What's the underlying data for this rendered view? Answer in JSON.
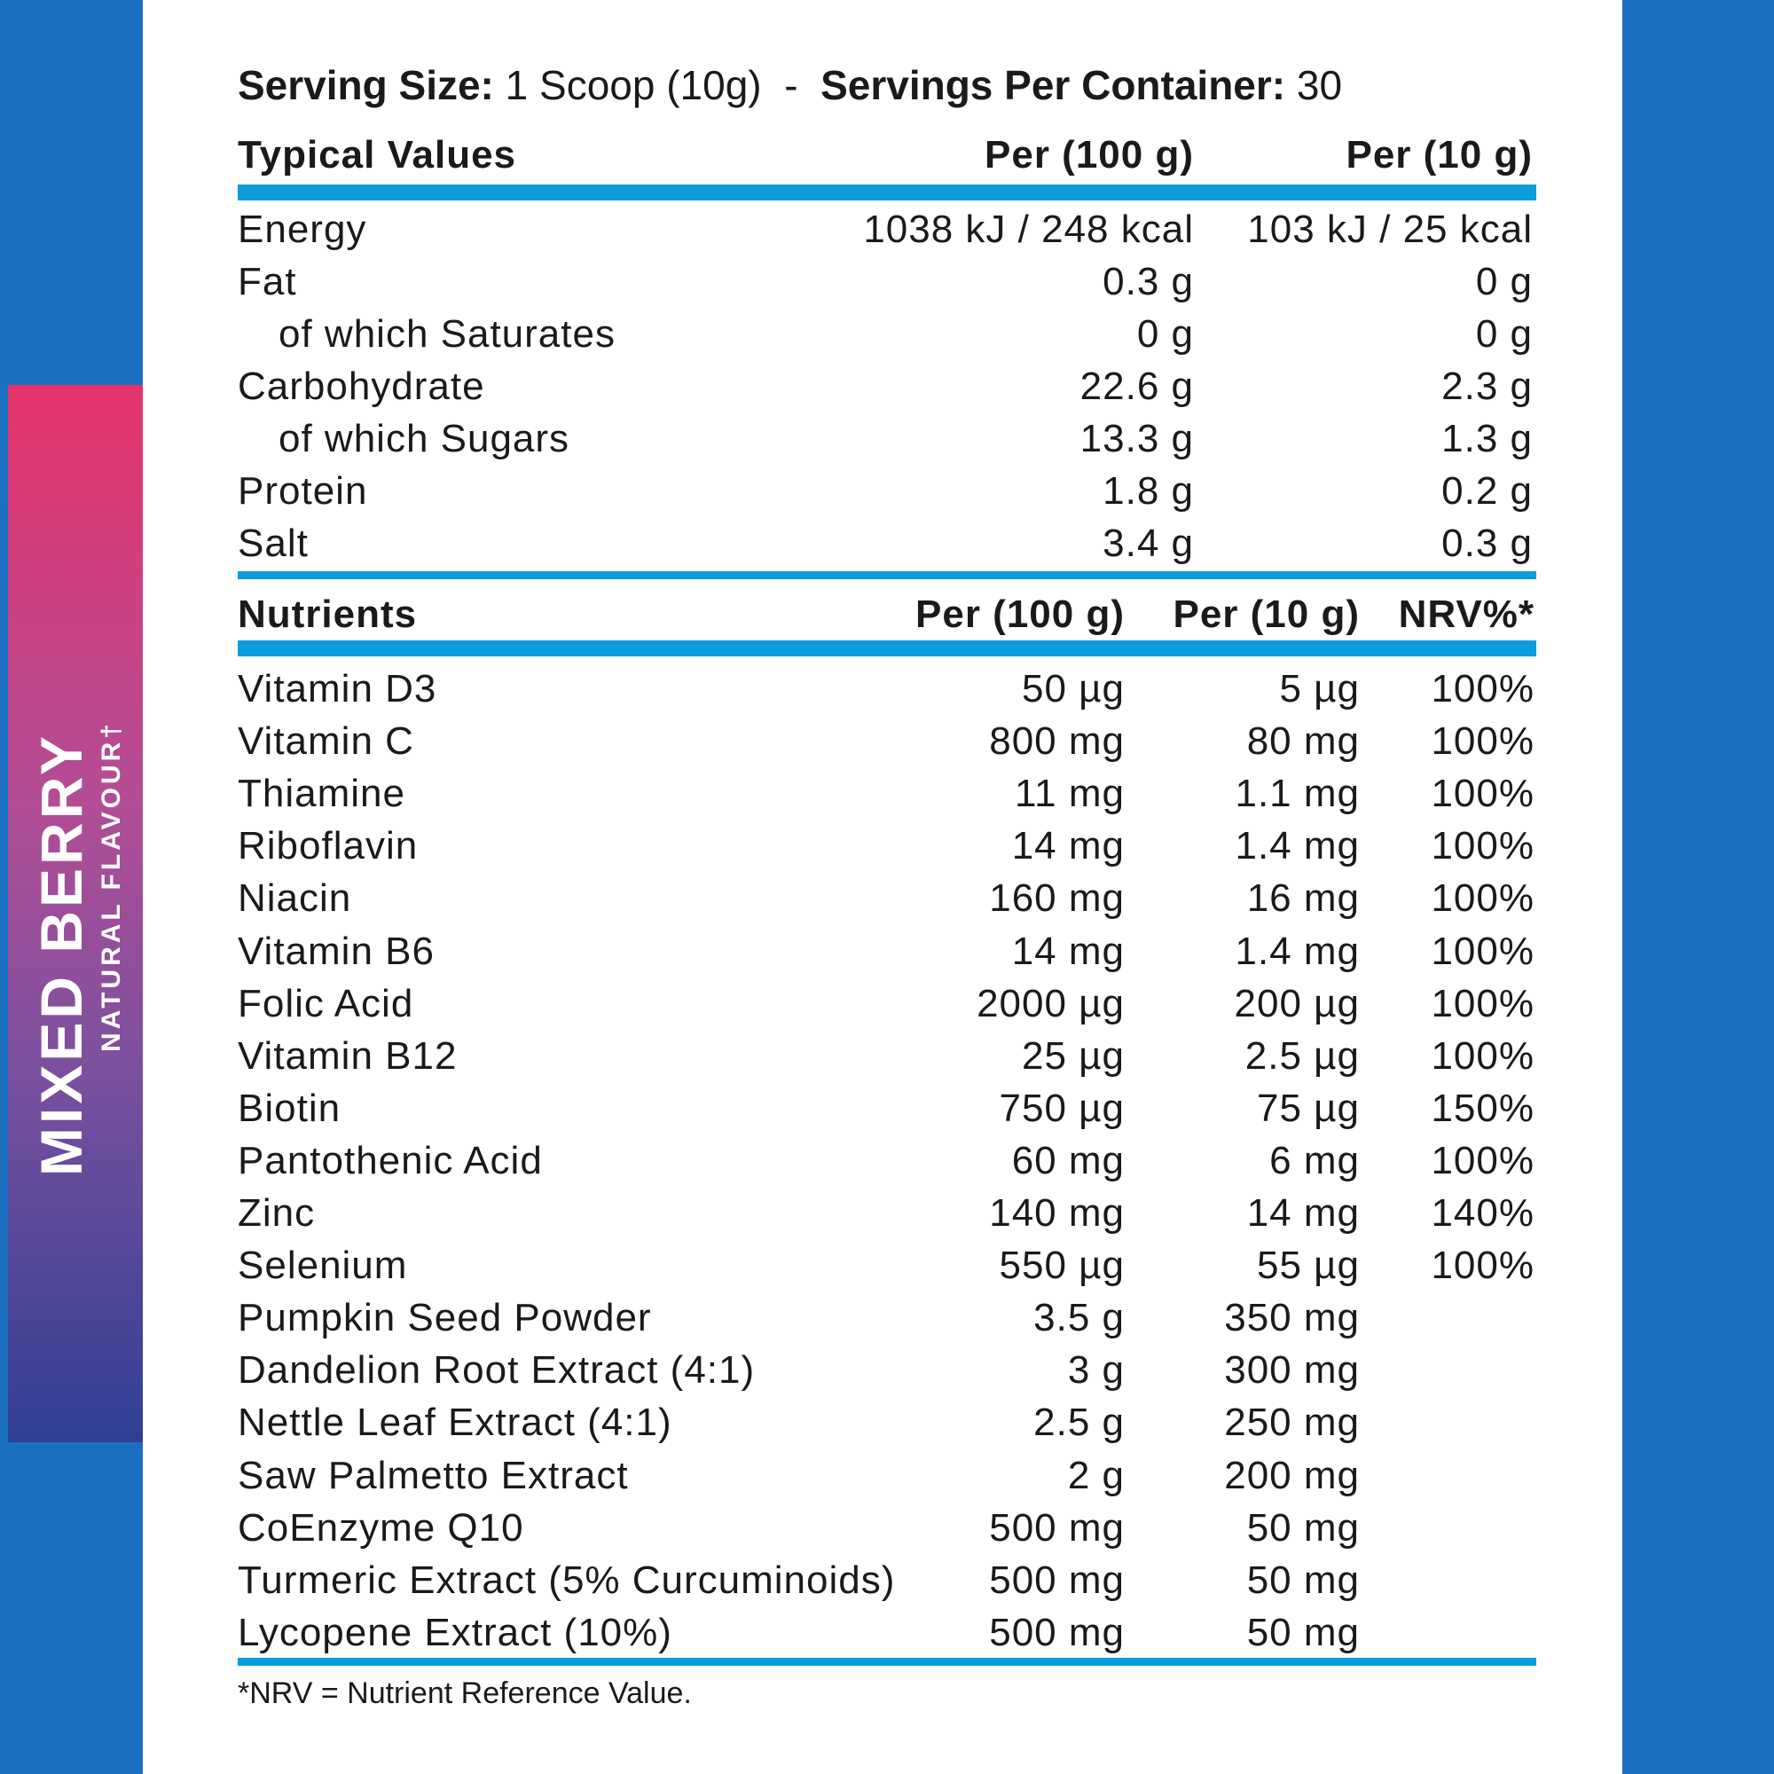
{
  "side_label": {
    "flavour": "MIXED BERRY",
    "subtitle": "NATURAL FLAVOUR†"
  },
  "serving": {
    "size_label": "Serving Size:",
    "size_value": "1 Scoop (10g)",
    "separator": "-",
    "per_container_label": "Servings Per Container:",
    "per_container_value": "30"
  },
  "typical": {
    "headers": [
      "Typical Values",
      "Per (100 g)",
      "Per (10 g)"
    ],
    "rows": [
      {
        "name": "Energy",
        "per100": "1038 kJ / 248 kcal",
        "per10": "103 kJ / 25 kcal",
        "sub": false
      },
      {
        "name": "Fat",
        "per100": "0.3 g",
        "per10": "0 g",
        "sub": false
      },
      {
        "name": "of which Saturates",
        "per100": "0 g",
        "per10": "0 g",
        "sub": true
      },
      {
        "name": "Carbohydrate",
        "per100": "22.6 g",
        "per10": "2.3 g",
        "sub": false
      },
      {
        "name": "of which Sugars",
        "per100": "13.3 g",
        "per10": "1.3 g",
        "sub": true
      },
      {
        "name": "Protein",
        "per100": "1.8 g",
        "per10": "0.2 g",
        "sub": false
      },
      {
        "name": "Salt",
        "per100": "3.4 g",
        "per10": "0.3 g",
        "sub": false
      }
    ]
  },
  "nutrients": {
    "headers": [
      "Nutrients",
      "Per (100 g)",
      "Per (10 g)",
      "NRV%*"
    ],
    "rows": [
      {
        "name": "Vitamin D3",
        "per100": "50 µg",
        "per10": "5 µg",
        "nrv": "100%"
      },
      {
        "name": "Vitamin C",
        "per100": "800 mg",
        "per10": "80 mg",
        "nrv": "100%"
      },
      {
        "name": "Thiamine",
        "per100": "11 mg",
        "per10": "1.1 mg",
        "nrv": "100%"
      },
      {
        "name": "Riboflavin",
        "per100": "14 mg",
        "per10": "1.4 mg",
        "nrv": "100%"
      },
      {
        "name": "Niacin",
        "per100": "160 mg",
        "per10": "16 mg",
        "nrv": "100%"
      },
      {
        "name": "Vitamin B6",
        "per100": "14 mg",
        "per10": "1.4 mg",
        "nrv": "100%"
      },
      {
        "name": "Folic Acid",
        "per100": "2000 µg",
        "per10": "200 µg",
        "nrv": "100%"
      },
      {
        "name": "Vitamin B12",
        "per100": "25 µg",
        "per10": "2.5 µg",
        "nrv": "100%"
      },
      {
        "name": "Biotin",
        "per100": "750 µg",
        "per10": "75 µg",
        "nrv": "150%"
      },
      {
        "name": "Pantothenic Acid",
        "per100": "60 mg",
        "per10": "6 mg",
        "nrv": "100%"
      },
      {
        "name": "Zinc",
        "per100": "140 mg",
        "per10": "14 mg",
        "nrv": "140%"
      },
      {
        "name": "Selenium",
        "per100": "550 µg",
        "per10": "55 µg",
        "nrv": "100%"
      },
      {
        "name": "Pumpkin Seed Powder",
        "per100": "3.5 g",
        "per10": "350 mg",
        "nrv": ""
      },
      {
        "name": "Dandelion Root Extract (4:1)",
        "per100": "3 g",
        "per10": "300 mg",
        "nrv": ""
      },
      {
        "name": "Nettle Leaf Extract (4:1)",
        "per100": "2.5 g",
        "per10": "250 mg",
        "nrv": ""
      },
      {
        "name": "Saw Palmetto Extract",
        "per100": "2 g",
        "per10": "200 mg",
        "nrv": ""
      },
      {
        "name": "CoEnzyme Q10",
        "per100": "500 mg",
        "per10": "50 mg",
        "nrv": ""
      },
      {
        "name": "Turmeric Extract (5% Curcuminoids)",
        "per100": "500 mg",
        "per10": "50 mg",
        "nrv": ""
      },
      {
        "name": "Lycopene Extract (10%)",
        "per100": "500 mg",
        "per10": "50 mg",
        "nrv": ""
      }
    ]
  },
  "footnote": "*NRV = Nutrient Reference Value.",
  "colors": {
    "background": "#1b6fc0",
    "rule": "#0b9ddc",
    "band_top": "#e5336b",
    "band_bottom": "#2f3f94"
  }
}
